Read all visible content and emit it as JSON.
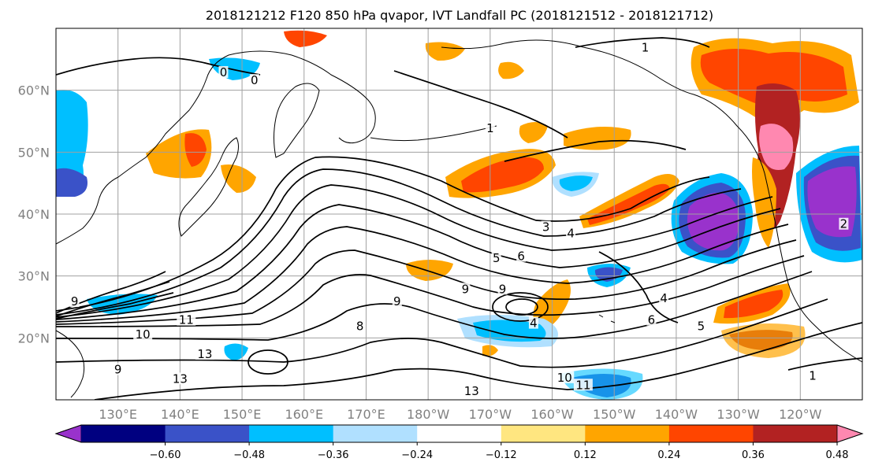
{
  "title": "2018121212 F120 850 hPa qvapor, IVT Landfall PC (2018121512 - 2018121712)",
  "map": {
    "lon_range": [
      120,
      250
    ],
    "lat_range": [
      10,
      70
    ],
    "lat_ticks": [
      {
        "value": 20,
        "label": "20°N"
      },
      {
        "value": 30,
        "label": "30°N"
      },
      {
        "value": 40,
        "label": "40°N"
      },
      {
        "value": 50,
        "label": "50°N"
      },
      {
        "value": 60,
        "label": "60°N"
      }
    ],
    "lon_ticks": [
      {
        "value": 130,
        "label": "130°E"
      },
      {
        "value": 140,
        "label": "140°E"
      },
      {
        "value": 150,
        "label": "150°E"
      },
      {
        "value": 160,
        "label": "160°E"
      },
      {
        "value": 170,
        "label": "170°E"
      },
      {
        "value": 180,
        "label": "180°W"
      },
      {
        "value": 190,
        "label": "170°W"
      },
      {
        "value": 200,
        "label": "160°W"
      },
      {
        "value": 210,
        "label": "150°W"
      },
      {
        "value": 220,
        "label": "140°W"
      },
      {
        "value": 230,
        "label": "130°W"
      },
      {
        "value": 240,
        "label": "120°W"
      }
    ],
    "grid": true,
    "grid_color": "#a0a0a0",
    "coast_color": "#000000"
  },
  "colorbar": {
    "colors": [
      "#9932cc",
      "#000080",
      "#3a52c8",
      "#00bfff",
      "#b0e0ff",
      "#ffffff",
      "#ffe680",
      "#ffa500",
      "#ff4500",
      "#b22222",
      "#ff88b0"
    ],
    "levels": [
      -0.6,
      -0.48,
      -0.36,
      -0.24,
      -0.12,
      0.12,
      0.24,
      0.36,
      0.48,
      0.6
    ],
    "labels": [
      "−0.60",
      "−0.48",
      "−0.36",
      "−0.24",
      "−0.12",
      "0.12",
      "0.24",
      "0.36",
      "0.48",
      "0.60"
    ],
    "extend": "both"
  },
  "contour_labels": [
    {
      "text": "0",
      "lon": 147,
      "lat": 62.5
    },
    {
      "text": "0",
      "lon": 152,
      "lat": 61.2
    },
    {
      "text": "1",
      "lon": 215,
      "lat": 66.5
    },
    {
      "text": "1",
      "lon": 190,
      "lat": 53.5
    },
    {
      "text": "3",
      "lon": 199,
      "lat": 37.5
    },
    {
      "text": "4",
      "lon": 203,
      "lat": 36.5
    },
    {
      "text": "5",
      "lon": 191,
      "lat": 32.5
    },
    {
      "text": "6",
      "lon": 195,
      "lat": 32.8
    },
    {
      "text": "9",
      "lon": 175,
      "lat": 25.5
    },
    {
      "text": "9",
      "lon": 186,
      "lat": 27.5
    },
    {
      "text": "9",
      "lon": 192,
      "lat": 27.5
    },
    {
      "text": "8",
      "lon": 169,
      "lat": 21.5
    },
    {
      "text": "10",
      "lon": 134,
      "lat": 20.2
    },
    {
      "text": "11",
      "lon": 141,
      "lat": 22.5
    },
    {
      "text": "13",
      "lon": 144,
      "lat": 17.0
    },
    {
      "text": "13",
      "lon": 140,
      "lat": 13.0
    },
    {
      "text": "13",
      "lon": 187,
      "lat": 11.0
    },
    {
      "text": "9",
      "lon": 130,
      "lat": 14.5
    },
    {
      "text": "9",
      "lon": 123,
      "lat": 25.5
    },
    {
      "text": "10",
      "lon": 202,
      "lat": 13.2
    },
    {
      "text": "11",
      "lon": 205,
      "lat": 12.0
    },
    {
      "text": "4",
      "lon": 218,
      "lat": 26.0
    },
    {
      "text": "6",
      "lon": 216,
      "lat": 22.5
    },
    {
      "text": "5",
      "lon": 224,
      "lat": 21.5
    },
    {
      "text": "4",
      "lon": 197,
      "lat": 22.0
    },
    {
      "text": "1",
      "lon": 242,
      "lat": 13.5
    },
    {
      "text": "2",
      "lon": 247,
      "lat": 38.0
    }
  ]
}
